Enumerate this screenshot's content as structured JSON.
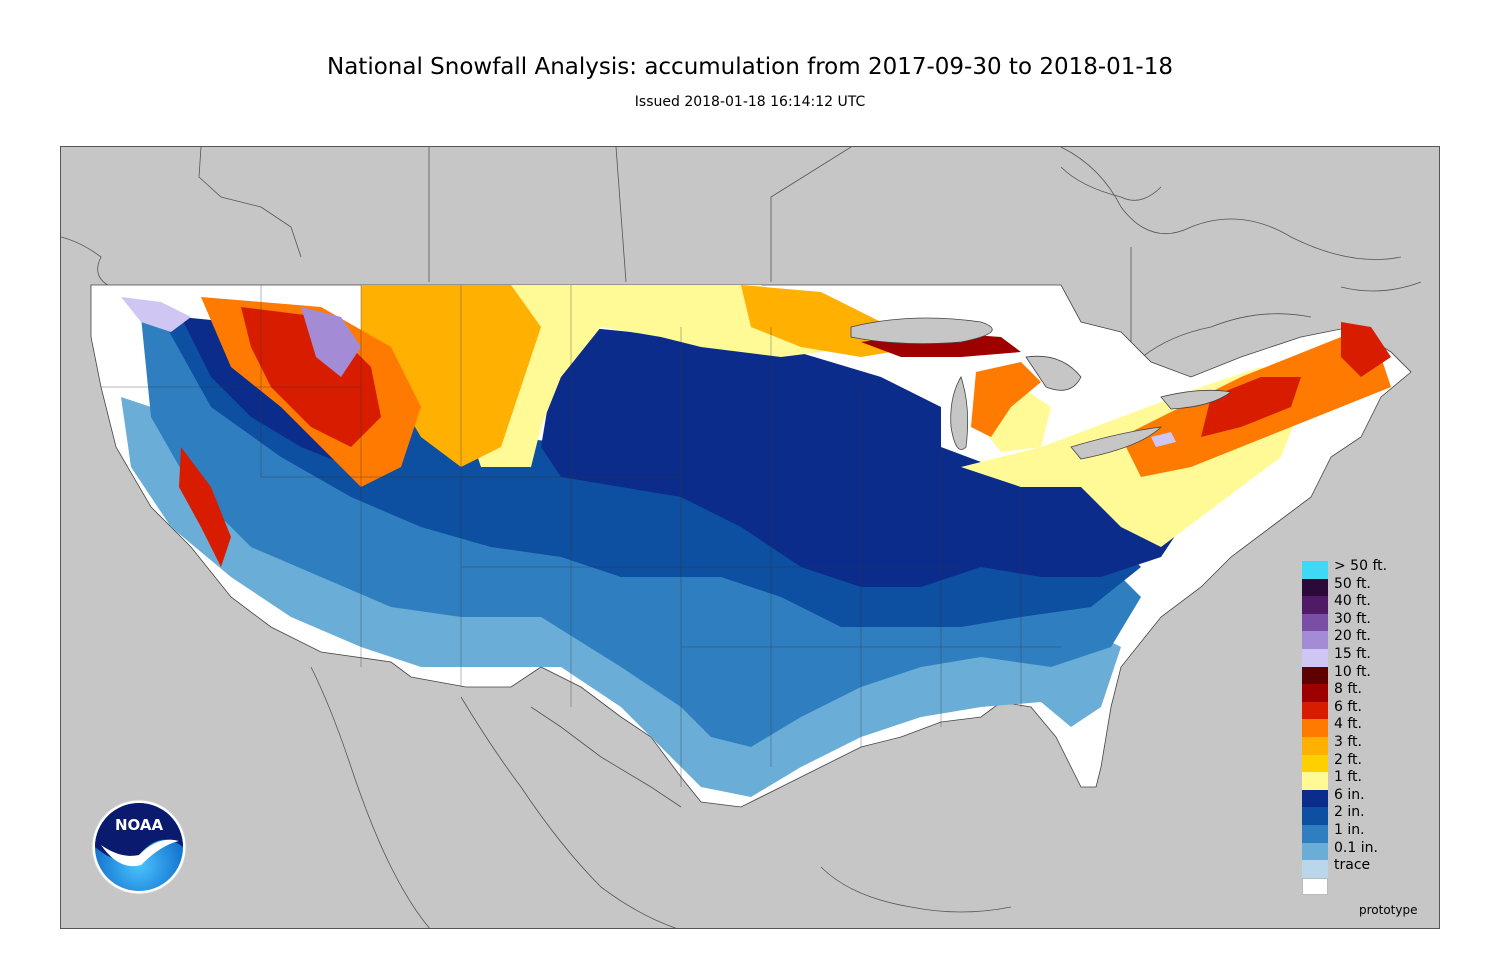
{
  "title": "National Snowfall Analysis: accumulation from 2017-09-30 to 2018-01-18",
  "subtitle": "Issued 2018-01-18 16:14:12 UTC",
  "map": {
    "background_color": "#c6c6c6",
    "land_outline_color": "#444444"
  },
  "legend": [
    {
      "label": "> 50 ft.",
      "color": "#3fd9f5"
    },
    {
      "label": "50 ft.",
      "color": "#2b0a3a"
    },
    {
      "label": "40 ft.",
      "color": "#4f1a66"
    },
    {
      "label": "30 ft.",
      "color": "#7b4ea6"
    },
    {
      "label": "20 ft.",
      "color": "#a38bd6"
    },
    {
      "label": "15 ft.",
      "color": "#cfc6f4"
    },
    {
      "label": "10 ft.",
      "color": "#5e0000"
    },
    {
      "label": "8 ft.",
      "color": "#9e0000"
    },
    {
      "label": "6 ft.",
      "color": "#d81c00"
    },
    {
      "label": "4 ft.",
      "color": "#ff7a00"
    },
    {
      "label": "3 ft.",
      "color": "#ffb000"
    },
    {
      "label": "2 ft.",
      "color": "#ffd000"
    },
    {
      "label": "1 ft.",
      "color": "#fffa96"
    },
    {
      "label": "6 in.",
      "color": "#0c2c8c"
    },
    {
      "label": "2 in.",
      "color": "#0d4fa0"
    },
    {
      "label": "1 in.",
      "color": "#2f7fc0"
    },
    {
      "label": "0.1 in.",
      "color": "#6aaed8"
    },
    {
      "label": "trace",
      "color": "#b9d6ea"
    }
  ],
  "logo_text": "NOAA",
  "prototype_label": "prototype"
}
